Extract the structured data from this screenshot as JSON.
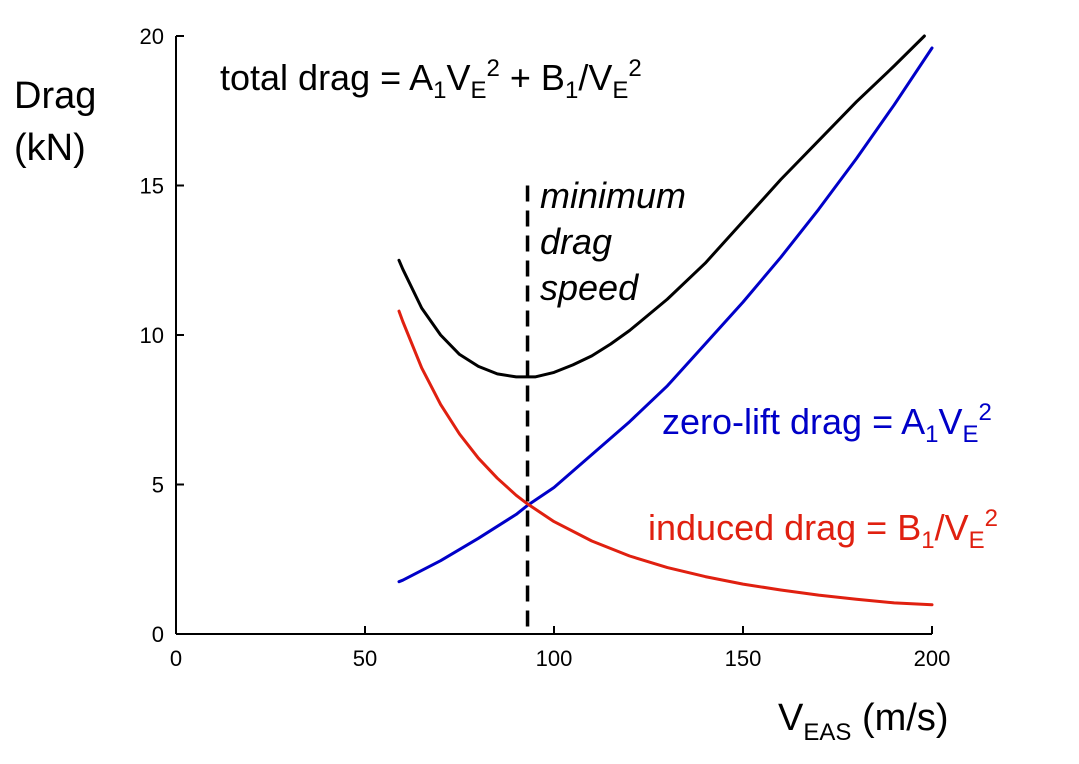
{
  "chart_data": {
    "type": "line",
    "title": "",
    "xlabel": {
      "main": "V",
      "sub": "EAS",
      "unit": " (m/s)"
    },
    "ylabel": [
      "Drag",
      "(kN)"
    ],
    "xlim": [
      0,
      200
    ],
    "ylim": [
      0,
      20
    ],
    "xticks": [
      0,
      50,
      100,
      150,
      200
    ],
    "yticks": [
      0,
      5,
      10,
      15,
      20
    ],
    "grid": false,
    "legend": "none",
    "min_drag_speed": 93,
    "series": [
      {
        "name": "total drag",
        "color": "#000000",
        "x": [
          59,
          60,
          65,
          70,
          75,
          80,
          85,
          90,
          93,
          95,
          100,
          105,
          110,
          115,
          120,
          130,
          140,
          150,
          160,
          170,
          180,
          190,
          198
        ],
        "y": [
          12.5,
          12.2,
          10.9,
          10.0,
          9.35,
          8.95,
          8.7,
          8.6,
          8.6,
          8.6,
          8.75,
          9.0,
          9.3,
          9.7,
          10.15,
          11.2,
          12.4,
          13.8,
          15.2,
          16.5,
          17.8,
          19.0,
          20.0
        ]
      },
      {
        "name": "zero-lift drag",
        "color": "#0000c8",
        "x": [
          59,
          60,
          70,
          80,
          90,
          93,
          100,
          110,
          120,
          130,
          140,
          150,
          160,
          170,
          180,
          190,
          200
        ],
        "y": [
          1.75,
          1.8,
          2.45,
          3.2,
          4.0,
          4.3,
          4.9,
          6.0,
          7.1,
          8.3,
          9.7,
          11.1,
          12.6,
          14.2,
          15.9,
          17.7,
          19.6
        ]
      },
      {
        "name": "induced drag",
        "color": "#e02010",
        "x": [
          59,
          60,
          65,
          70,
          75,
          80,
          85,
          90,
          93,
          100,
          110,
          120,
          130,
          140,
          150,
          160,
          170,
          180,
          190,
          200
        ],
        "y": [
          10.8,
          10.45,
          8.9,
          7.68,
          6.69,
          5.88,
          5.21,
          4.64,
          4.35,
          3.76,
          3.11,
          2.61,
          2.22,
          1.92,
          1.67,
          1.47,
          1.3,
          1.16,
          1.04,
          0.98
        ]
      }
    ],
    "annotations": {
      "total": {
        "pre": "total drag = A",
        "s1": "1",
        "v": "V",
        "s2": "E",
        "p1": "2",
        "mid": " + B",
        "s3": "1",
        "slash": "/V",
        "s4": "E",
        "p2": "2"
      },
      "zero_lift": {
        "pre": "zero-lift drag = A",
        "s1": "1",
        "v": "V",
        "s2": "E",
        "p1": "2"
      },
      "induced": {
        "pre": "induced drag = B",
        "s1": "1",
        "slash": "/V",
        "s2": "E",
        "p1": "2"
      },
      "min_speed": [
        "minimum",
        "drag",
        "speed"
      ]
    }
  }
}
